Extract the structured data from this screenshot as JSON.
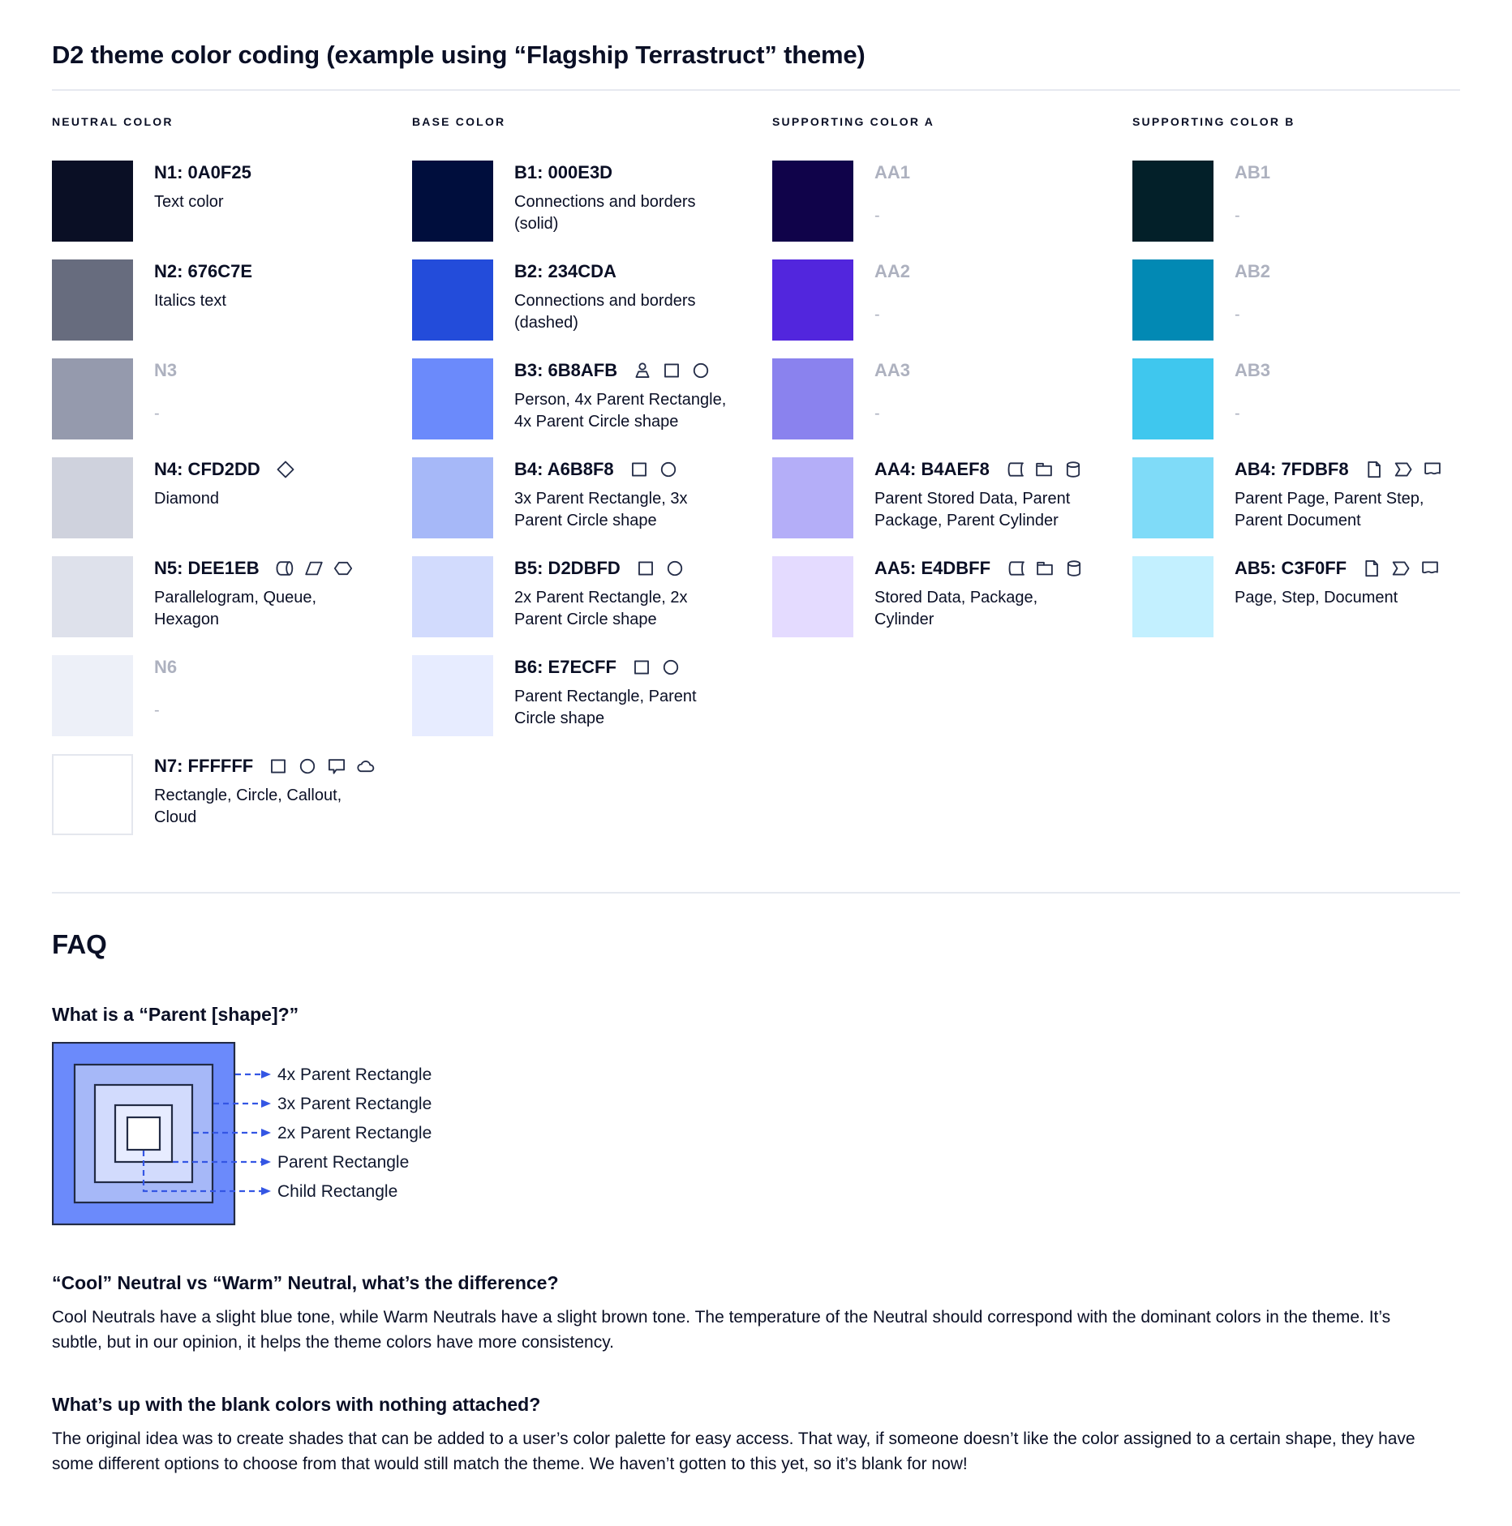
{
  "page": {
    "title": "D2 theme color coding (example using “Flagship Terrastruct” theme)"
  },
  "palette": {
    "columns": [
      {
        "header": "NEUTRAL COLOR",
        "items": [
          {
            "name": "N1: 0A0F25",
            "swatch": "#0A0F25",
            "desc": "Text color",
            "icons": [],
            "blank": false
          },
          {
            "name": "N2: 676C7E",
            "swatch": "#676C7E",
            "desc": "Italics text",
            "icons": [],
            "blank": false
          },
          {
            "name": "N3",
            "swatch": "#959AAD",
            "desc": "-",
            "icons": [],
            "blank": true
          },
          {
            "name": "N4: CFD2DD",
            "swatch": "#CFD2DD",
            "desc": "Diamond",
            "icons": [
              "diamond"
            ],
            "blank": false
          },
          {
            "name": "N5: DEE1EB",
            "swatch": "#DEE1EB",
            "desc": "Parallelogram, Queue, Hexagon",
            "icons": [
              "queue",
              "parallelogram",
              "hexagon"
            ],
            "blank": false
          },
          {
            "name": "N6",
            "swatch": "#EDF0F8",
            "desc": "-",
            "icons": [],
            "blank": true
          },
          {
            "name": "N7: FFFFFF",
            "swatch": "#FFFFFF",
            "desc": "Rectangle, Circle, Callout, Cloud",
            "icons": [
              "rectangle",
              "circle",
              "callout",
              "cloud"
            ],
            "blank": false,
            "bordered": true
          }
        ]
      },
      {
        "header": "BASE COLOR",
        "items": [
          {
            "name": "B1: 000E3D",
            "swatch": "#000E3D",
            "desc": "Connections and borders (solid)",
            "icons": [],
            "blank": false
          },
          {
            "name": "B2: 234CDA",
            "swatch": "#234CDA",
            "desc": "Connections and borders (dashed)",
            "icons": [],
            "blank": false
          },
          {
            "name": "B3: 6B8AFB",
            "swatch": "#6B8AFB",
            "desc": "Person, 4x Parent Rectangle, 4x Parent Circle shape",
            "icons": [
              "person",
              "rectangle",
              "circle"
            ],
            "blank": false
          },
          {
            "name": "B4: A6B8F8",
            "swatch": "#A6B8F8",
            "desc": "3x Parent Rectangle, 3x Parent Circle shape",
            "icons": [
              "rectangle",
              "circle"
            ],
            "blank": false
          },
          {
            "name": "B5: D2DBFD",
            "swatch": "#D2DBFD",
            "desc": "2x Parent Rectangle, 2x Parent Circle shape",
            "icons": [
              "rectangle",
              "circle"
            ],
            "blank": false
          },
          {
            "name": "B6: E7ECFF",
            "swatch": "#E7ECFF",
            "desc": "Parent Rectangle, Parent Circle shape",
            "icons": [
              "rectangle",
              "circle"
            ],
            "blank": false
          }
        ]
      },
      {
        "header": "SUPPORTING COLOR A",
        "items": [
          {
            "name": "AA1",
            "swatch": "#10034A",
            "desc": "-",
            "icons": [],
            "blank": true
          },
          {
            "name": "AA2",
            "swatch": "#5226DD",
            "desc": "-",
            "icons": [],
            "blank": true
          },
          {
            "name": "AA3",
            "swatch": "#8A82EE",
            "desc": "-",
            "icons": [],
            "blank": true
          },
          {
            "name": "AA4: B4AEF8",
            "swatch": "#B4AEF8",
            "desc": "Parent Stored Data, Parent Package,  Parent Cylinder",
            "icons": [
              "stored-data",
              "package",
              "cylinder"
            ],
            "blank": false
          },
          {
            "name": "AA5: E4DBFF",
            "swatch": "#E4DBFF",
            "desc": "Stored Data, Package, Cylinder",
            "icons": [
              "stored-data",
              "package",
              "cylinder"
            ],
            "blank": false
          }
        ]
      },
      {
        "header": "SUPPORTING COLOR B",
        "items": [
          {
            "name": "AB1",
            "swatch": "#032029",
            "desc": "-",
            "icons": [],
            "blank": true
          },
          {
            "name": "AB2",
            "swatch": "#0289B4",
            "desc": "-",
            "icons": [],
            "blank": true
          },
          {
            "name": "AB3",
            "swatch": "#3FC7EE",
            "desc": "-",
            "icons": [],
            "blank": true
          },
          {
            "name": "AB4: 7FDBF8",
            "swatch": "#7FDBF8",
            "desc": "Parent Page, Parent Step, Parent Document",
            "icons": [
              "page",
              "step",
              "document"
            ],
            "blank": false
          },
          {
            "name": "AB5: C3F0FF",
            "swatch": "#C3F0FF",
            "desc": "Page, Step, Document",
            "icons": [
              "page",
              "step",
              "document"
            ],
            "blank": false
          }
        ]
      }
    ]
  },
  "faq": {
    "heading": "FAQ",
    "q1": "What is a “Parent [shape]?”",
    "diagram": {
      "labels": [
        "4x Parent Rectangle",
        "3x Parent Rectangle",
        "2x Parent Rectangle",
        "Parent Rectangle",
        "Child Rectangle"
      ],
      "square_colors": [
        "#6B8AFB",
        "#A6B8F8",
        "#D2DBFD",
        "#E7ECFF",
        "#FFFFFF"
      ],
      "border_color": "#222B45",
      "arrow_color": "#3456E4"
    },
    "q2": "“Cool” Neutral vs “Warm” Neutral, what’s the difference?",
    "a2": "Cool Neutrals have a slight blue tone, while Warm Neutrals have a slight brown tone. The temperature of the Neutral should correspond with the dominant colors in the theme. It’s subtle, but in our opinion, it helps the theme colors have more consistency.",
    "q3": "What’s up with the blank colors with nothing attached?",
    "a3": "The original idea was to create shades that can be added to a user’s color palette for easy access. That way, if someone doesn’t like the color assigned to a certain shape, they have some different options to choose from that would still match the theme. We haven’t gotten to this yet, so it’s blank for now!"
  }
}
